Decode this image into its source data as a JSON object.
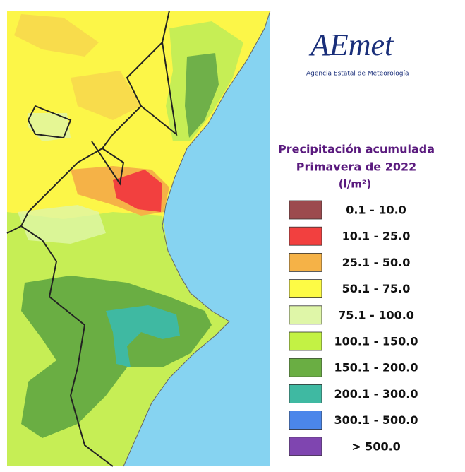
{
  "logo": {
    "name": "AEmet",
    "subtitle": "Agencia Estatal de Meteorología"
  },
  "title": {
    "line1": "Precipitación acumulada",
    "line2": "Primavera de 2022",
    "unit": "(l/m²)"
  },
  "legend": [
    {
      "label": "0.1 - 10.0",
      "color": "#9c4a4e"
    },
    {
      "label": "10.1 - 25.0",
      "color": "#f2403f"
    },
    {
      "label": "25.1 - 50.0",
      "color": "#f5b247"
    },
    {
      "label": "50.1 - 75.0",
      "color": "#fdfb45"
    },
    {
      "label": "75.1 - 100.0",
      "color": "#dff6a8"
    },
    {
      "label": "100.1 - 150.0",
      "color": "#c3f244"
    },
    {
      "label": "150.1 - 200.0",
      "color": "#6aae43"
    },
    {
      "label": "200.1 - 300.0",
      "color": "#3fb9a2"
    },
    {
      "label": "300.1 - 500.0",
      "color": "#4b86ea"
    },
    {
      "label": "> 500.0",
      "color": "#7f45b0"
    }
  ]
}
